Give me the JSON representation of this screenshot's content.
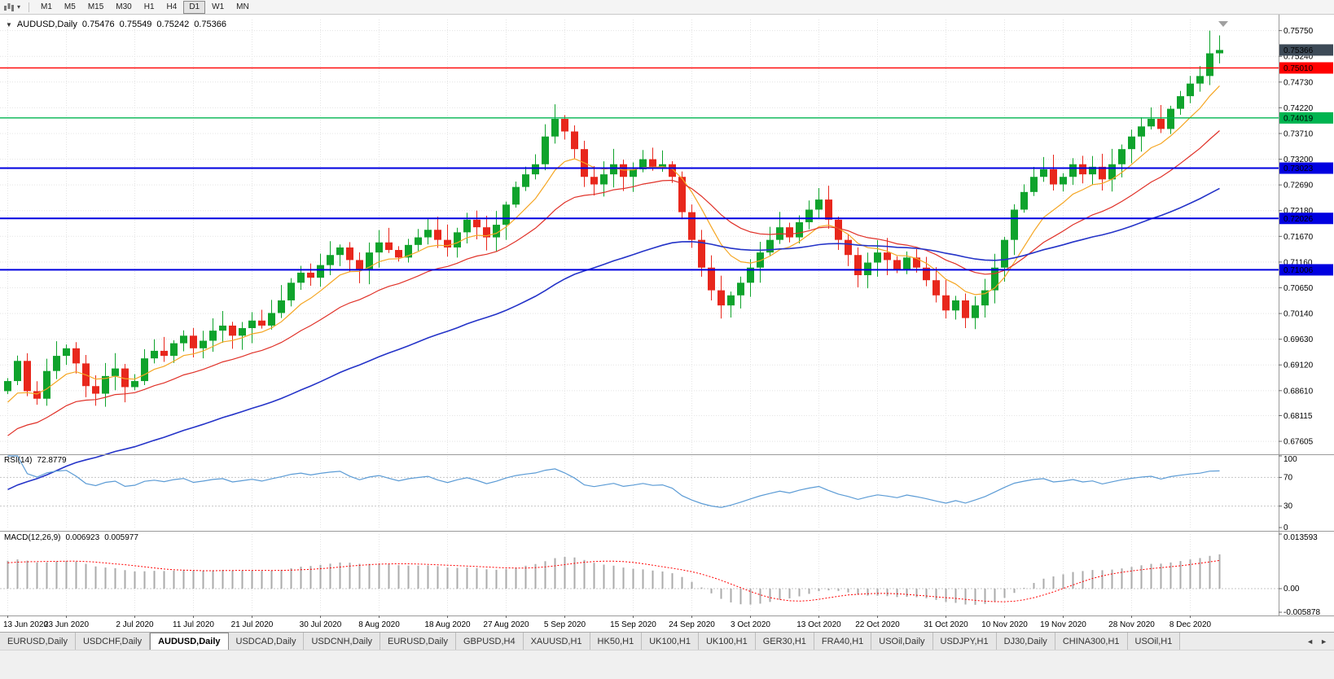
{
  "toolbar": {
    "timeframes": [
      "M1",
      "M5",
      "M15",
      "M30",
      "H1",
      "H4",
      "D1",
      "W1",
      "MN"
    ],
    "active": "D1"
  },
  "chart": {
    "header": {
      "collapse": "▼",
      "symbol": "AUDUSD,Daily",
      "open": "0.75476",
      "high": "0.75549",
      "low": "0.75242",
      "close": "0.75366"
    }
  },
  "panes": {
    "rsi": {
      "name": "RSI(14)",
      "value": "72.8779"
    },
    "macd": {
      "name": "MACD(12,26,9)",
      "value1": "0.006923",
      "value2": "0.005977"
    }
  },
  "tabs": {
    "labels": [
      "EURUSD,Daily",
      "USDCHF,Daily",
      "AUDUSD,Daily",
      "USDCAD,Daily",
      "USDCNH,Daily",
      "EURUSD,Daily",
      "GBPUSD,H4",
      "XAUUSD,H1",
      "HK50,H1",
      "UK100,H1",
      "UK100,H1",
      "GER30,H1",
      "FRA40,H1",
      "USOil,Daily",
      "USDJPY,H1",
      "DJ30,Daily",
      "CHINA300,H1",
      "USOil,H1"
    ],
    "active_index": 2,
    "scroll_left": "◄",
    "scroll_right": "►"
  },
  "chart_data": {
    "type": "candlestick",
    "symbol": "AUDUSD",
    "timeframe": "Daily",
    "ohlc_display": {
      "open": 0.75476,
      "high": 0.75549,
      "low": 0.75242,
      "close": 0.75366
    },
    "first_open": 0.686,
    "closes": [
      0.688,
      0.692,
      0.686,
      0.6845,
      0.69,
      0.693,
      0.6945,
      0.6915,
      0.687,
      0.6855,
      0.689,
      0.6905,
      0.6868,
      0.688,
      0.6925,
      0.694,
      0.693,
      0.6955,
      0.697,
      0.6945,
      0.696,
      0.698,
      0.699,
      0.697,
      0.6985,
      0.7,
      0.699,
      0.7015,
      0.704,
      0.7075,
      0.7095,
      0.7085,
      0.711,
      0.713,
      0.7145,
      0.712,
      0.71,
      0.7135,
      0.7155,
      0.714,
      0.7125,
      0.715,
      0.7165,
      0.718,
      0.716,
      0.7145,
      0.7175,
      0.72,
      0.7185,
      0.7165,
      0.719,
      0.723,
      0.7265,
      0.729,
      0.731,
      0.7365,
      0.74,
      0.7375,
      0.734,
      0.7285,
      0.727,
      0.729,
      0.731,
      0.7285,
      0.73,
      0.732,
      0.7305,
      0.731,
      0.7285,
      0.7215,
      0.716,
      0.7105,
      0.706,
      0.703,
      0.705,
      0.7075,
      0.7105,
      0.7135,
      0.716,
      0.7185,
      0.7165,
      0.7195,
      0.722,
      0.724,
      0.72,
      0.716,
      0.713,
      0.709,
      0.7115,
      0.7135,
      0.712,
      0.71,
      0.7125,
      0.7105,
      0.708,
      0.705,
      0.702,
      0.704,
      0.7005,
      0.703,
      0.706,
      0.7105,
      0.716,
      0.722,
      0.7255,
      0.7285,
      0.73,
      0.727,
      0.7285,
      0.731,
      0.729,
      0.7305,
      0.728,
      0.731,
      0.734,
      0.7365,
      0.7385,
      0.74,
      0.738,
      0.742,
      0.7445,
      0.747,
      0.7485,
      0.753,
      0.75366
    ],
    "x_labels": [
      "13 Jun 2020",
      "23 Jun 2020",
      "2 Jul 2020",
      "11 Jul 2020",
      "21 Jul 2020",
      "30 Jul 2020",
      "8 Aug 2020",
      "18 Aug 2020",
      "27 Aug 2020",
      "5 Sep 2020",
      "15 Sep 2020",
      "24 Sep 2020",
      "3 Oct 2020",
      "13 Oct 2020",
      "22 Oct 2020",
      "31 Oct 2020",
      "10 Nov 2020",
      "19 Nov 2020",
      "28 Nov 2020",
      "8 Dec 2020"
    ],
    "y_ticks": [
      "0.75750",
      "0.75240",
      "0.74730",
      "0.74220",
      "0.73710",
      "0.73200",
      "0.72690",
      "0.72180",
      "0.71670",
      "0.71160",
      "0.70650",
      "0.70140",
      "0.69630",
      "0.69120",
      "0.68610",
      "0.68115",
      "0.67605"
    ],
    "y_range": [
      0.6738,
      0.7597
    ],
    "current_price": {
      "value": 0.75366,
      "label": "0.75366",
      "color": "#3D4A57"
    },
    "levels": [
      {
        "price": 0.7501,
        "label": "0.75010",
        "color": "#FF0000",
        "width": 1.4
      },
      {
        "price": 0.74019,
        "label": "0.74019",
        "color": "#00B450",
        "width": 1.4
      },
      {
        "price": 0.73023,
        "label": "0.73023",
        "color": "#0000E0",
        "width": 2
      },
      {
        "price": 0.72026,
        "label": "0.72026",
        "color": "#0000E0",
        "width": 2
      },
      {
        "price": 0.71006,
        "label": "0.71006",
        "color": "#0000E0",
        "width": 2
      }
    ],
    "candle_colors": {
      "up": "#0FA32C",
      "down": "#E8271C"
    },
    "moving_averages": [
      {
        "period": 8,
        "color": "#F5A623",
        "width": 1.2
      },
      {
        "period": 20,
        "color": "#E03128",
        "width": 1.2
      },
      {
        "period": 55,
        "color": "#2433C8",
        "width": 1.6
      }
    ],
    "indicators": [
      {
        "name": "RSI",
        "period": 14,
        "value": 72.8779,
        "axis": [
          100,
          70,
          30,
          0
        ],
        "color": "#5B9BD5",
        "levels": [
          70,
          30
        ]
      },
      {
        "name": "MACD",
        "fast": 12,
        "slow": 26,
        "signal": 9,
        "values": [
          0.006923,
          0.005977
        ],
        "axis_labels": [
          "0.013593",
          "0.00",
          "-0.005878"
        ],
        "axis_max": 0.013593,
        "axis_min": -0.005878,
        "histogram_color": "#ABABAB",
        "signal_color": "#FF0000"
      }
    ],
    "grid_color": "#E4E4E4"
  }
}
